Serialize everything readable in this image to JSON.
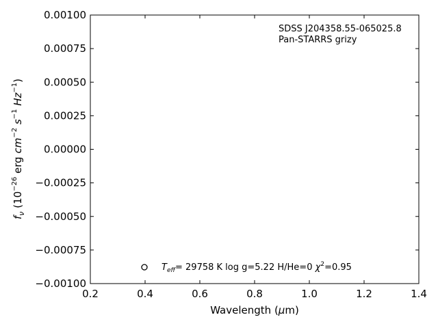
{
  "chart_data": {
    "type": "scatter",
    "object_name": "SDSS J204358.55-065025.8",
    "photometry_label": "Pan-STARRS grizy",
    "xlabel": "Wavelength (μm)",
    "ylabel": "f_ν (10^-26 erg cm^-2 s^-1 Hz^-1)",
    "xlim": [
      0.2,
      1.4
    ],
    "ylim": [
      -0.001,
      0.001
    ],
    "xticks": [
      0.2,
      0.4,
      0.6,
      0.8,
      1.0,
      1.2,
      1.4
    ],
    "xtick_labels": [
      "0.2",
      "0.4",
      "0.6",
      "0.8",
      "1.0",
      "1.2",
      "1.4"
    ],
    "yticks": [
      -0.001,
      -0.00075,
      -0.0005,
      -0.00025,
      0,
      0.00025,
      0.0005,
      0.00075,
      0.001
    ],
    "ytick_labels": [
      "−0.00100",
      "−0.00075",
      "−0.00050",
      "−0.00025",
      "0.00000",
      "0.00025",
      "0.00050",
      "0.00075",
      "0.00100"
    ],
    "grid": false,
    "series": [],
    "legend": {
      "placement": "lower-left",
      "marker": "open-circle",
      "teff": "29758 K",
      "logg": "5.22",
      "hhe": "0",
      "chi2": "0.95"
    }
  }
}
